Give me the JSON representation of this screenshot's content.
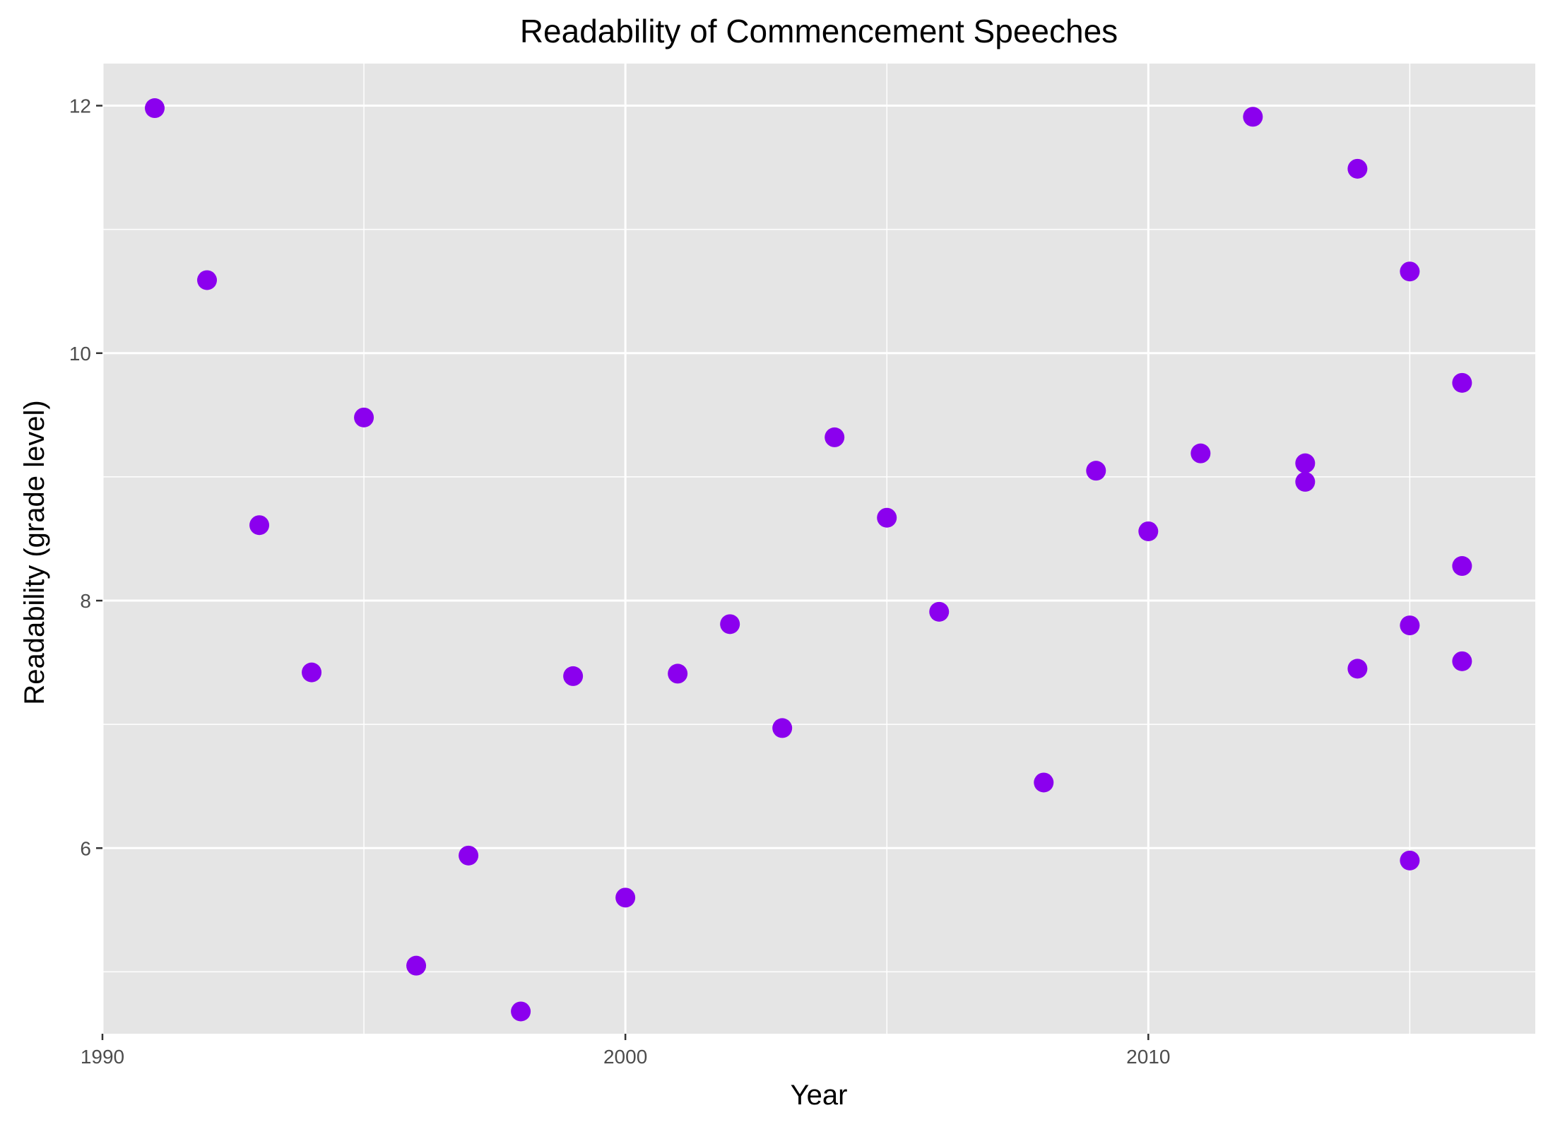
{
  "chart_data": {
    "type": "scatter",
    "title": "Readability of Commencement Speeches",
    "xlabel": "Year",
    "ylabel": "Readability (grade level)",
    "xlim": [
      1990,
      2017.4
    ],
    "ylim": [
      4.5,
      12.34
    ],
    "x_ticks": [
      1990,
      2000,
      2010
    ],
    "y_ticks": [
      6,
      8,
      10,
      12
    ],
    "grid": true,
    "panel_background": "#e5e5e5",
    "grid_color": "#ffffff",
    "point_color": "#8b00ee",
    "points": [
      {
        "x": 1991,
        "y": 11.98
      },
      {
        "x": 1992,
        "y": 10.59
      },
      {
        "x": 1993,
        "y": 8.61
      },
      {
        "x": 1994,
        "y": 7.42
      },
      {
        "x": 1995,
        "y": 9.48
      },
      {
        "x": 1996,
        "y": 5.05
      },
      {
        "x": 1997,
        "y": 5.94
      },
      {
        "x": 1998,
        "y": 4.68
      },
      {
        "x": 1999,
        "y": 7.39
      },
      {
        "x": 2000,
        "y": 5.6
      },
      {
        "x": 2001,
        "y": 7.41
      },
      {
        "x": 2002,
        "y": 7.81
      },
      {
        "x": 2003,
        "y": 6.97
      },
      {
        "x": 2004,
        "y": 9.32
      },
      {
        "x": 2005,
        "y": 8.67
      },
      {
        "x": 2006,
        "y": 7.91
      },
      {
        "x": 2008,
        "y": 6.53
      },
      {
        "x": 2009,
        "y": 9.05
      },
      {
        "x": 2010,
        "y": 8.56
      },
      {
        "x": 2011,
        "y": 9.19
      },
      {
        "x": 2012,
        "y": 11.91
      },
      {
        "x": 2013,
        "y": 9.11
      },
      {
        "x": 2013,
        "y": 8.96
      },
      {
        "x": 2014,
        "y": 11.49
      },
      {
        "x": 2014,
        "y": 7.45
      },
      {
        "x": 2015,
        "y": 10.66
      },
      {
        "x": 2015,
        "y": 7.8
      },
      {
        "x": 2015,
        "y": 5.9
      },
      {
        "x": 2016,
        "y": 9.76
      },
      {
        "x": 2016,
        "y": 8.28
      },
      {
        "x": 2016,
        "y": 7.51
      }
    ]
  }
}
